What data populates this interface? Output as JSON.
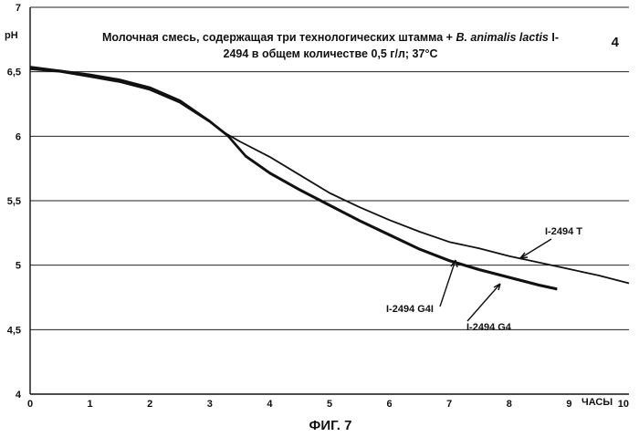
{
  "chart_data": {
    "type": "line",
    "page_number": "4",
    "ylabel": "pH",
    "xlabel": "ЧАСЫ",
    "title_parts": [
      "Молочная смесь, содержащая три технологических штамма + ",
      "B. animalis lactis",
      " I-",
      "2494 в общем количестве 0,5 г/л; 37°C"
    ],
    "figure_caption": "ФИГ. 7",
    "xlim": [
      0,
      10
    ],
    "ylim": [
      4,
      7
    ],
    "x_ticks": [
      "0",
      "1",
      "2",
      "3",
      "4",
      "5",
      "6",
      "7",
      "8",
      "9",
      "10"
    ],
    "y_ticks": [
      "4",
      "4,5",
      "5",
      "5,5",
      "6",
      "6,5",
      "7"
    ],
    "grid": "horizontal",
    "series": [
      {
        "name": "I-2494 T",
        "x": [
          0,
          0.5,
          1,
          1.5,
          2,
          2.5,
          3,
          3.2,
          3.5,
          4,
          4.5,
          5,
          5.5,
          6,
          6.5,
          7,
          7.5,
          8,
          8.5,
          9,
          9.5,
          10
        ],
        "y": [
          6.54,
          6.51,
          6.48,
          6.44,
          6.38,
          6.28,
          6.12,
          6.04,
          5.96,
          5.84,
          5.7,
          5.56,
          5.45,
          5.35,
          5.26,
          5.18,
          5.13,
          5.07,
          5.02,
          4.97,
          4.92,
          4.86
        ]
      },
      {
        "name": "I-2494 G4I",
        "x": [
          0,
          0.5,
          1,
          1.5,
          2,
          2.5,
          3,
          3.3,
          3.6,
          4,
          4.5,
          5,
          5.5,
          6,
          6.5,
          7,
          7.5,
          8,
          8.5,
          8.8
        ],
        "y": [
          6.52,
          6.5,
          6.46,
          6.42,
          6.36,
          6.26,
          6.11,
          6.0,
          5.84,
          5.71,
          5.58,
          5.46,
          5.34,
          5.23,
          5.12,
          5.03,
          4.96,
          4.9,
          4.84,
          4.81
        ]
      },
      {
        "name": "I-2494 G4",
        "x": [
          0,
          0.5,
          1,
          1.5,
          2,
          2.5,
          3,
          3.3,
          3.6,
          4,
          4.5,
          5,
          5.5,
          6,
          6.5,
          7,
          7.5,
          8,
          8.5,
          8.8
        ],
        "y": [
          6.53,
          6.51,
          6.47,
          6.43,
          6.37,
          6.27,
          6.12,
          6.01,
          5.85,
          5.72,
          5.59,
          5.47,
          5.35,
          5.24,
          5.13,
          5.04,
          4.97,
          4.91,
          4.85,
          4.82
        ]
      }
    ]
  }
}
